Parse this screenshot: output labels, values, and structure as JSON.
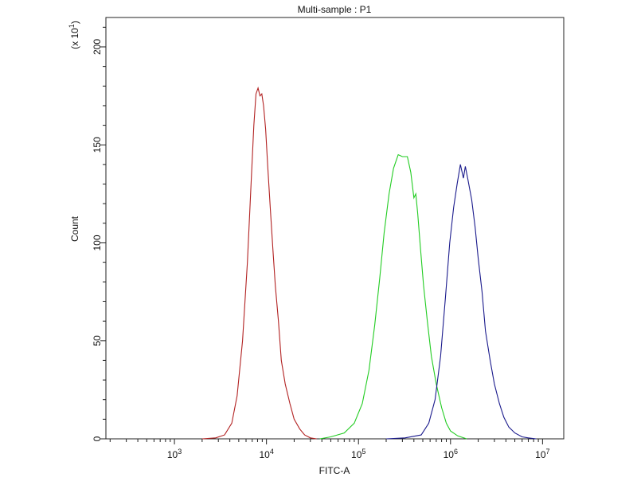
{
  "chart_data": {
    "type": "line",
    "title": "Multi-sample : P1",
    "xlabel": "FITC-A",
    "ylabel": "Count",
    "y_multiplier": "(x 10",
    "y_multiplier_exp": "1",
    "y_multiplier_close": ")",
    "x_scale": "log",
    "xlim": [
      180,
      17000000
    ],
    "ylim": [
      0,
      215
    ],
    "x_ticks": [
      {
        "value": 1000,
        "base": "10",
        "exp": "3"
      },
      {
        "value": 10000,
        "base": "10",
        "exp": "4"
      },
      {
        "value": 100000,
        "base": "10",
        "exp": "5"
      },
      {
        "value": 1000000,
        "base": "10",
        "exp": "6"
      },
      {
        "value": 10000000,
        "base": "10",
        "exp": "7"
      }
    ],
    "y_ticks": [
      {
        "value": 0,
        "label": "0"
      },
      {
        "value": 50,
        "label": "50"
      },
      {
        "value": 100,
        "label": "100"
      },
      {
        "value": 150,
        "label": "150"
      },
      {
        "value": 200,
        "label": "200"
      }
    ],
    "grid": false,
    "series": [
      {
        "color": "#b22222",
        "points": [
          [
            2000,
            0
          ],
          [
            2800,
            0.5
          ],
          [
            3500,
            2
          ],
          [
            4200,
            8
          ],
          [
            4800,
            22
          ],
          [
            5500,
            50
          ],
          [
            6200,
            90
          ],
          [
            6800,
            130
          ],
          [
            7300,
            160
          ],
          [
            7700,
            176
          ],
          [
            8100,
            179
          ],
          [
            8500,
            175
          ],
          [
            8900,
            176
          ],
          [
            9300,
            170
          ],
          [
            9800,
            158
          ],
          [
            10300,
            140
          ],
          [
            11000,
            118
          ],
          [
            11800,
            95
          ],
          [
            12500,
            78
          ],
          [
            13500,
            60
          ],
          [
            14500,
            40
          ],
          [
            16000,
            28
          ],
          [
            18000,
            18
          ],
          [
            20000,
            10
          ],
          [
            23000,
            5
          ],
          [
            26000,
            2
          ],
          [
            30000,
            0.5
          ],
          [
            35000,
            0
          ]
        ]
      },
      {
        "color": "#22cc22",
        "points": [
          [
            38000,
            0
          ],
          [
            50000,
            1
          ],
          [
            70000,
            3
          ],
          [
            90000,
            8
          ],
          [
            110000,
            18
          ],
          [
            130000,
            35
          ],
          [
            150000,
            58
          ],
          [
            170000,
            82
          ],
          [
            190000,
            105
          ],
          [
            215000,
            125
          ],
          [
            240000,
            138
          ],
          [
            270000,
            145
          ],
          [
            300000,
            144
          ],
          [
            340000,
            144
          ],
          [
            370000,
            136
          ],
          [
            400000,
            123
          ],
          [
            420000,
            125
          ],
          [
            440000,
            115
          ],
          [
            470000,
            98
          ],
          [
            510000,
            78
          ],
          [
            560000,
            60
          ],
          [
            620000,
            42
          ],
          [
            700000,
            28
          ],
          [
            800000,
            16
          ],
          [
            900000,
            8
          ],
          [
            1000000,
            4
          ],
          [
            1200000,
            1.5
          ],
          [
            1500000,
            0
          ]
        ]
      },
      {
        "color": "#1a1a8c",
        "points": [
          [
            200000,
            0
          ],
          [
            320000,
            0.5
          ],
          [
            480000,
            2
          ],
          [
            580000,
            8
          ],
          [
            680000,
            20
          ],
          [
            780000,
            42
          ],
          [
            880000,
            72
          ],
          [
            980000,
            100
          ],
          [
            1080000,
            118
          ],
          [
            1180000,
            130
          ],
          [
            1280000,
            140
          ],
          [
            1380000,
            133
          ],
          [
            1450000,
            139
          ],
          [
            1550000,
            132
          ],
          [
            1700000,
            122
          ],
          [
            1850000,
            108
          ],
          [
            2000000,
            92
          ],
          [
            2200000,
            75
          ],
          [
            2400000,
            55
          ],
          [
            2700000,
            40
          ],
          [
            3000000,
            28
          ],
          [
            3400000,
            18
          ],
          [
            3800000,
            11
          ],
          [
            4300000,
            6
          ],
          [
            5000000,
            3
          ],
          [
            6000000,
            1
          ],
          [
            7000000,
            0.5
          ],
          [
            8500000,
            0
          ]
        ]
      }
    ]
  }
}
